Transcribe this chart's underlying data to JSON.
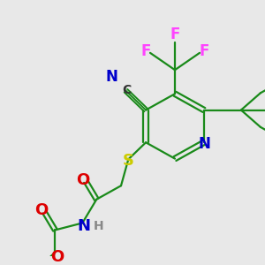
{
  "background_color": "#e8e8e8",
  "atom_colors": {
    "C": "#333333",
    "N": "#0000cc",
    "O": "#dd0000",
    "S": "#cccc00",
    "F": "#ff44ff",
    "H": "#888888"
  },
  "bond_color": "#1a8a1a",
  "figsize": [
    3.0,
    3.0
  ],
  "dpi": 100
}
